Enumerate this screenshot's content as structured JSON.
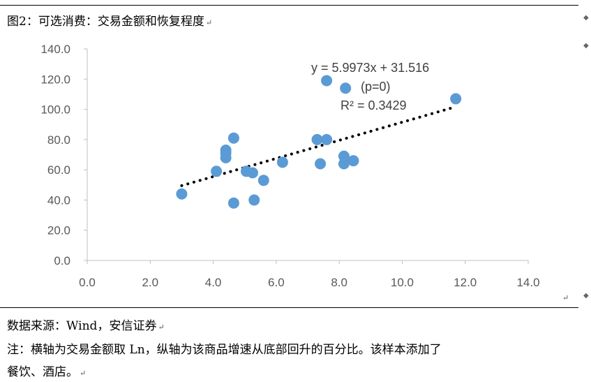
{
  "header": {
    "title": "图2：可选消费：交易金额和恢复程度"
  },
  "footer": {
    "source": "数据来源：Wind，安信证券",
    "note_line1": "注：横轴为交易金额取 Ln，纵轴为该商品增速从底部回升的百分比。该样本添加了",
    "note_line2": "餐饮、酒店。"
  },
  "paragraph_mark": "↵",
  "chart_data": {
    "type": "scatter",
    "xlim": [
      0,
      14
    ],
    "ylim": [
      0,
      140
    ],
    "x_ticks": [
      "0.0",
      "2.0",
      "4.0",
      "6.0",
      "8.0",
      "10.0",
      "12.0",
      "14.0"
    ],
    "y_ticks": [
      "0.0",
      "20.0",
      "40.0",
      "60.0",
      "80.0",
      "100.0",
      "120.0",
      "140.0"
    ],
    "points": [
      {
        "x": 3.0,
        "y": 44
      },
      {
        "x": 4.1,
        "y": 59
      },
      {
        "x": 4.4,
        "y": 73
      },
      {
        "x": 4.4,
        "y": 71
      },
      {
        "x": 4.4,
        "y": 68
      },
      {
        "x": 4.65,
        "y": 81
      },
      {
        "x": 4.65,
        "y": 38
      },
      {
        "x": 5.05,
        "y": 59
      },
      {
        "x": 5.25,
        "y": 58
      },
      {
        "x": 5.3,
        "y": 40
      },
      {
        "x": 5.6,
        "y": 53
      },
      {
        "x": 6.2,
        "y": 65
      },
      {
        "x": 7.3,
        "y": 80
      },
      {
        "x": 7.4,
        "y": 64
      },
      {
        "x": 7.6,
        "y": 80
      },
      {
        "x": 7.6,
        "y": 119
      },
      {
        "x": 8.15,
        "y": 69
      },
      {
        "x": 8.15,
        "y": 64
      },
      {
        "x": 8.2,
        "y": 114
      },
      {
        "x": 8.45,
        "y": 66
      },
      {
        "x": 11.7,
        "y": 107
      }
    ],
    "trendline": {
      "slope": 5.9973,
      "intercept": 31.516,
      "x_range": [
        3.0,
        11.7
      ],
      "equation": "y = 5.9973x + 31.516",
      "p_value": "(p=0)",
      "r_squared": "R² = 0.3429"
    },
    "grid": false,
    "colors": {
      "marker": "#5b9bd5",
      "trend": "#000000",
      "axis": "#bfbfbf"
    }
  }
}
